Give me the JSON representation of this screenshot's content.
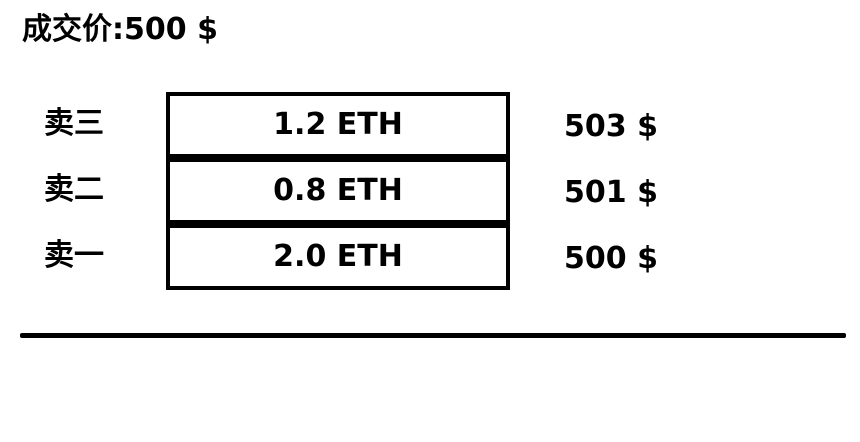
{
  "header": {
    "last_price_label": "成交价:500 $"
  },
  "asks": [
    {
      "label": "卖三",
      "amount": "1.2 ETH",
      "price": "503 $"
    },
    {
      "label": "卖二",
      "amount": "0.8 ETH",
      "price": "501 $"
    },
    {
      "label": "卖一",
      "amount": "2.0 ETH",
      "price": "500 $"
    }
  ],
  "colors": {
    "text": "#000000",
    "background": "#ffffff",
    "border": "#000000"
  }
}
